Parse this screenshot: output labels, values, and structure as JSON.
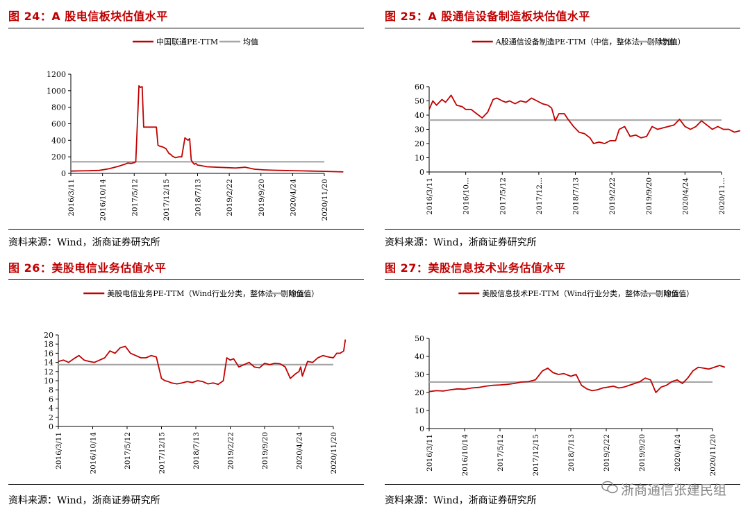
{
  "source_text": "资料来源：Wind，浙商证券研究所",
  "watermark": "浙商通信张建民组",
  "colors": {
    "series": "#c00000",
    "mean": "#a6a6a6",
    "title": "#c00000"
  },
  "chart_data": [
    {
      "type": "line",
      "title": "图 24：A 股电信板块估值水平",
      "legend": [
        "中国联通PE-TTM",
        "均值"
      ],
      "ylim": [
        0,
        1200
      ],
      "yticks": [
        0,
        200,
        400,
        600,
        800,
        1000,
        1200
      ],
      "xticks": [
        "2016/3/11",
        "2016/10/14",
        "2017/5/12",
        "2017/12/15",
        "2018/7/13",
        "2019/2/22",
        "2019/9/20",
        "2020/4/24",
        "2020/11/20"
      ],
      "mean": 140,
      "series": [
        {
          "name": "中国联通PE-TTM",
          "x": [
            0,
            0.3,
            0.6,
            0.9,
            1.2,
            1.5,
            1.7,
            1.8,
            1.9,
            2.0,
            2.05,
            2.1,
            2.15,
            2.2,
            2.25,
            2.3,
            2.35,
            2.4,
            2.45,
            2.5,
            2.6,
            2.65,
            2.7,
            2.75,
            2.8,
            2.9,
            3.0,
            3.1,
            3.15,
            3.2,
            3.3,
            3.4,
            3.5,
            3.6,
            3.7,
            3.75,
            3.8,
            3.85,
            3.9,
            3.95,
            4.0,
            4.1,
            4.3,
            4.6,
            4.9,
            5.2,
            5.5,
            5.8,
            6.1,
            6.4,
            6.7,
            7.0,
            7.3,
            7.6,
            7.9,
            8.2,
            8.6
          ],
          "values": [
            28,
            30,
            32,
            36,
            55,
            85,
            110,
            125,
            120,
            130,
            140,
            600,
            1060,
            1040,
            1050,
            560,
            560,
            560,
            560,
            560,
            560,
            560,
            560,
            340,
            330,
            320,
            300,
            240,
            230,
            210,
            190,
            200,
            200,
            430,
            400,
            420,
            160,
            130,
            110,
            120,
            100,
            95,
            80,
            75,
            70,
            65,
            75,
            50,
            42,
            38,
            35,
            33,
            30,
            28,
            25,
            22,
            18
          ]
        }
      ]
    },
    {
      "type": "line",
      "title": "图 25：A 股通信设备制造板块估值水平",
      "legend": [
        "A股通信设备制造PE-TTM（中信，整体法，剔除负值）",
        "均值"
      ],
      "ylim": [
        0,
        60
      ],
      "yticks": [
        0,
        10,
        20,
        30,
        40,
        50,
        60
      ],
      "xticks": [
        "2016/3/11",
        "2016/10...",
        "2017/5/12",
        "2017/12...",
        "2018/7/13",
        "2019/2/22",
        "2019/9/20",
        "2020/4/24",
        "2020/11..."
      ],
      "mean": 36.5,
      "series": [
        {
          "name": "A股通信设备制造PE-TTM",
          "x": [
            0,
            0.1,
            0.2,
            0.35,
            0.45,
            0.6,
            0.75,
            0.9,
            1.0,
            1.15,
            1.3,
            1.45,
            1.6,
            1.75,
            1.85,
            2.0,
            2.1,
            2.2,
            2.35,
            2.5,
            2.65,
            2.8,
            2.95,
            3.1,
            3.25,
            3.35,
            3.45,
            3.55,
            3.7,
            3.8,
            3.95,
            4.1,
            4.25,
            4.4,
            4.5,
            4.65,
            4.8,
            4.95,
            5.1,
            5.2,
            5.35,
            5.5,
            5.65,
            5.8,
            5.95,
            6.1,
            6.25,
            6.4,
            6.55,
            6.7,
            6.85,
            7.0,
            7.15,
            7.3,
            7.45,
            7.6,
            7.75,
            7.9,
            8.05,
            8.2,
            8.35,
            8.5,
            8.6
          ],
          "values": [
            44,
            50,
            47,
            51,
            49,
            54,
            47,
            46,
            44,
            44,
            41,
            38,
            42,
            51,
            52,
            50,
            49,
            50,
            48,
            50,
            49,
            52,
            50,
            48,
            47,
            45,
            36,
            41,
            41,
            37,
            32,
            28,
            27,
            24,
            20,
            21,
            20,
            22,
            22,
            30,
            32,
            25,
            26,
            24,
            25,
            32,
            30,
            31,
            32,
            33,
            37,
            32,
            30,
            32,
            36,
            33,
            30,
            32,
            30,
            30,
            28,
            29,
            30
          ]
        }
      ]
    },
    {
      "type": "line",
      "title": "图 26：美股电信业务估值水平",
      "legend": [
        "美股电信业务PE-TTM（Wind行业分类，整体法，剔除负值）",
        "均值"
      ],
      "ylim": [
        0,
        20
      ],
      "yticks": [
        0,
        2,
        4,
        6,
        8,
        10,
        12,
        14,
        16,
        18,
        20
      ],
      "xticks": [
        "2016/3/11",
        "2016/10/14",
        "2017/5/12",
        "2017/12/15",
        "2018/7/13",
        "2019/2/22",
        "2019/9/20",
        "2020/4/24",
        "2020/11/20"
      ],
      "mean": 13.5,
      "series": [
        {
          "name": "美股电信业务PE-TTM",
          "x": [
            0,
            0.15,
            0.3,
            0.45,
            0.6,
            0.75,
            0.9,
            1.05,
            1.2,
            1.35,
            1.5,
            1.65,
            1.8,
            1.95,
            2.1,
            2.25,
            2.4,
            2.55,
            2.7,
            2.85,
            3.0,
            3.1,
            3.2,
            3.3,
            3.45,
            3.6,
            3.75,
            3.9,
            4.05,
            4.2,
            4.35,
            4.5,
            4.65,
            4.8,
            4.9,
            5.0,
            5.1,
            5.25,
            5.4,
            5.55,
            5.7,
            5.85,
            6.0,
            6.15,
            6.3,
            6.45,
            6.6,
            6.75,
            6.9,
            7.0,
            7.05,
            7.1,
            7.25,
            7.4,
            7.55,
            7.7,
            7.85,
            8.0,
            8.1,
            8.2,
            8.3,
            8.35
          ],
          "values": [
            14.2,
            14.5,
            14.0,
            14.8,
            15.5,
            14.5,
            14.2,
            14.0,
            14.5,
            15.0,
            16.5,
            16.0,
            17.2,
            17.5,
            16.0,
            15.5,
            15.0,
            15.0,
            15.5,
            15.2,
            10.5,
            10.0,
            9.8,
            9.5,
            9.3,
            9.5,
            9.8,
            9.6,
            10.0,
            9.8,
            9.3,
            9.5,
            9.2,
            10.0,
            15.0,
            14.5,
            14.8,
            13.0,
            13.5,
            14.0,
            13.0,
            12.8,
            13.8,
            13.5,
            13.8,
            13.7,
            13.0,
            10.5,
            11.5,
            12.0,
            13.0,
            11.0,
            14.2,
            14.0,
            15.0,
            15.5,
            15.2,
            15.0,
            16.0,
            16.0,
            16.5,
            19.0
          ]
        }
      ]
    },
    {
      "type": "line",
      "title": "图 27：美股信息技术业务估值水平",
      "legend": [
        "美股信息技术PE-TTM（Wind行业分类，整体法，剔除负值）",
        "均值"
      ],
      "ylim": [
        0,
        50
      ],
      "yticks": [
        0,
        10,
        20,
        30,
        40,
        50
      ],
      "xticks": [
        "2016/3/11",
        "2016/10/14",
        "2017/5/12",
        "2017/12/15",
        "2018/7/13",
        "2019/2/22",
        "2019/9/20",
        "2020/4/24",
        "2020/11/20"
      ],
      "mean": 25.8,
      "series": [
        {
          "name": "美股信息技术PE-TTM",
          "x": [
            0,
            0.2,
            0.4,
            0.6,
            0.8,
            1.0,
            1.2,
            1.4,
            1.6,
            1.8,
            2.0,
            2.2,
            2.4,
            2.6,
            2.8,
            3.0,
            3.2,
            3.35,
            3.5,
            3.65,
            3.8,
            4.0,
            4.15,
            4.3,
            4.45,
            4.6,
            4.75,
            4.9,
            5.05,
            5.2,
            5.35,
            5.5,
            5.65,
            5.8,
            5.95,
            6.1,
            6.25,
            6.4,
            6.55,
            6.7,
            6.85,
            7.0,
            7.15,
            7.3,
            7.45,
            7.6,
            7.75,
            7.9,
            8.05,
            8.2,
            8.35
          ],
          "values": [
            20.5,
            21,
            20.8,
            21.5,
            22,
            21.8,
            22.5,
            22.8,
            23.5,
            24,
            24.2,
            24.5,
            25,
            25.8,
            26,
            27,
            32,
            33.5,
            31,
            30,
            30.5,
            29,
            30,
            24,
            22,
            21,
            21.5,
            22.5,
            23,
            23.5,
            22.5,
            23,
            24,
            25,
            26,
            28,
            27,
            20,
            23,
            24,
            26,
            27,
            25,
            28,
            32,
            34,
            33.5,
            33,
            34,
            35,
            34
          ]
        }
      ]
    }
  ]
}
